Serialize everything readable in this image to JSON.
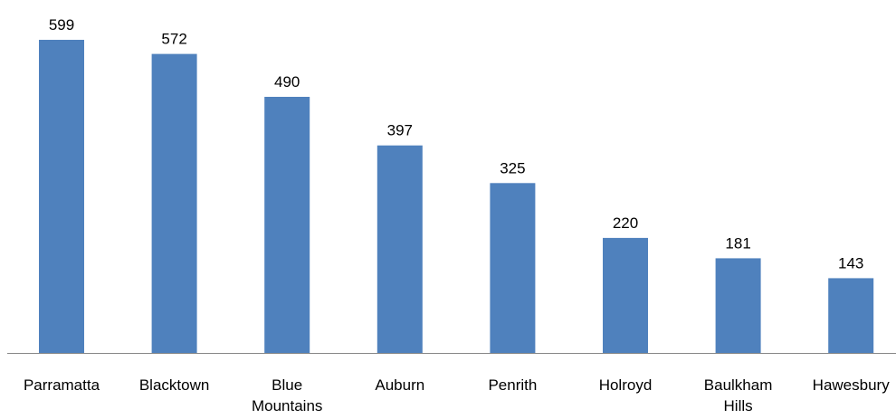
{
  "chart_data": {
    "type": "bar",
    "title": "",
    "xlabel": "",
    "ylabel": "",
    "categories": [
      [
        "Parramatta"
      ],
      [
        "Blacktown"
      ],
      [
        "Blue",
        "Mountains"
      ],
      [
        "Auburn"
      ],
      [
        "Penrith"
      ],
      [
        "Holroyd"
      ],
      [
        "Baulkham",
        "Hills"
      ],
      [
        "Hawesbury"
      ]
    ],
    "values": [
      599,
      572,
      490,
      397,
      325,
      220,
      181,
      143
    ],
    "value_labels": [
      "599",
      "572",
      "490",
      "397",
      "325",
      "220",
      "181",
      "143"
    ],
    "ylim": [
      0,
      599
    ],
    "grid": false,
    "legend": "none",
    "colors": {
      "bar": "#4f81bd",
      "axis": "#878787",
      "text": "#000000"
    }
  }
}
